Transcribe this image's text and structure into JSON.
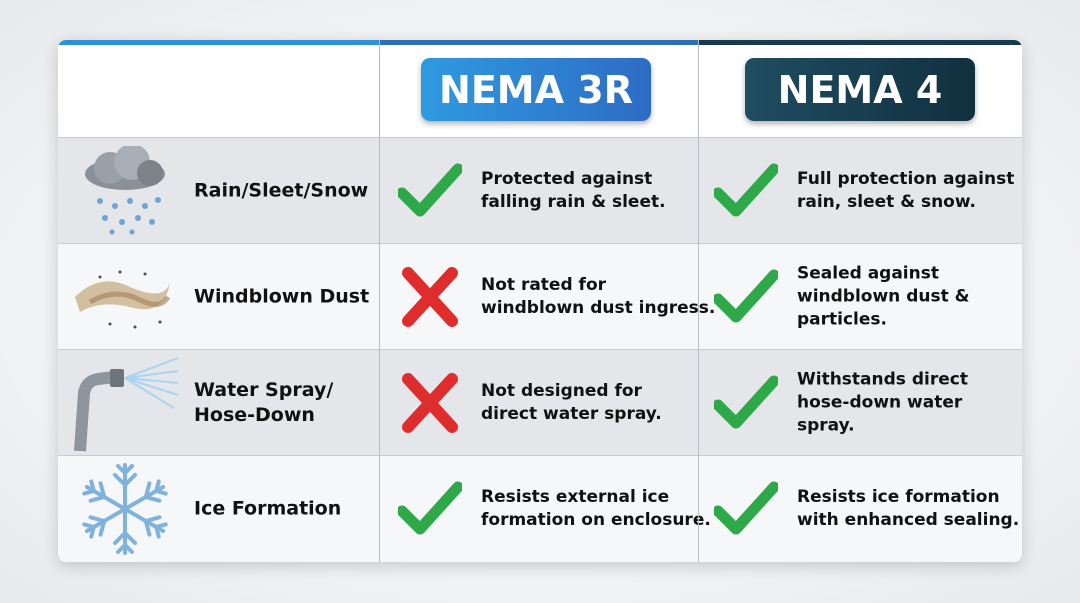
{
  "header": {
    "columns": [
      "NEMA 3R",
      "NEMA 4"
    ]
  },
  "rows": [
    {
      "label": "Rain/Sleet/Snow",
      "cells": [
        {
          "status": "check",
          "text": "Protected against\nfalling rain & sleet."
        },
        {
          "status": "check",
          "text": "Full protection against\nrain, sleet & snow."
        }
      ]
    },
    {
      "label": "Windblown Dust",
      "cells": [
        {
          "status": "cross",
          "text": "Not rated for\nwindblown dust ingress."
        },
        {
          "status": "check",
          "text": "Sealed against\nwindblown dust &\nparticles."
        }
      ]
    },
    {
      "label": "Water Spray/\nHose-Down",
      "cells": [
        {
          "status": "cross",
          "text": "Not designed for\ndirect water spray."
        },
        {
          "status": "check",
          "text": "Withstands direct\nhose-down water spray."
        }
      ]
    },
    {
      "label": "Ice Formation",
      "cells": [
        {
          "status": "check",
          "text": "Resists external ice\nformation on enclosure."
        },
        {
          "status": "check",
          "text": "Resists ice formation\nwith enhanced sealing."
        }
      ]
    }
  ]
}
